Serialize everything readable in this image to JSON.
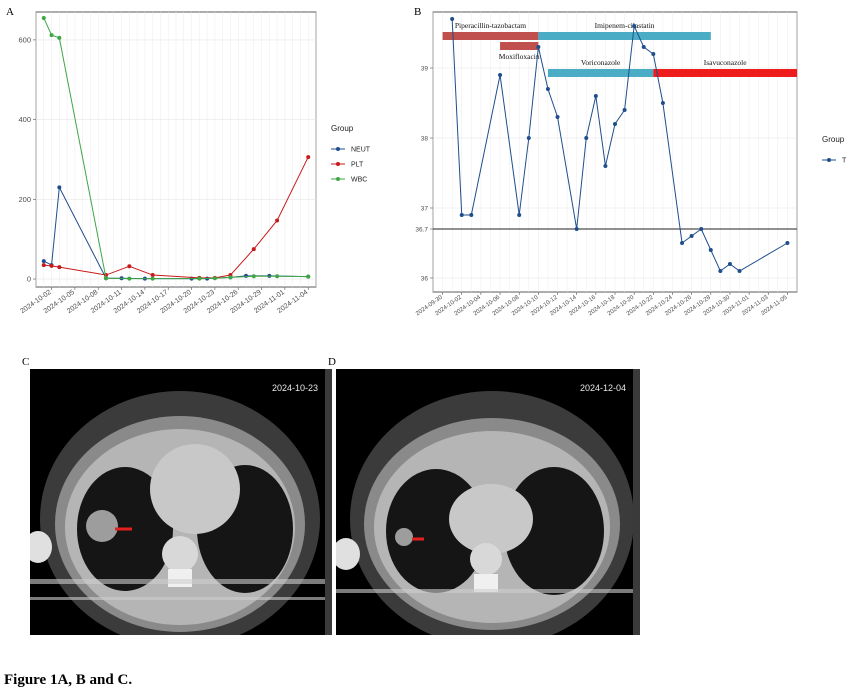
{
  "figure": {
    "caption": "Figure 1A, B and C.",
    "panels": {
      "a": "A",
      "b": "B",
      "c": "C",
      "d": "D"
    }
  },
  "chart_data": [
    {
      "panel": "A",
      "type": "line",
      "legend_title": "Group",
      "legend_position": "right",
      "grid": true,
      "x_type": "date",
      "x_ticks": [
        "2024-10-02",
        "2024-10-05",
        "2024-10-08",
        "2024-10-11",
        "2024-10-14",
        "2024-10-17",
        "2024-10-20",
        "2024-10-23",
        "2024-10-26",
        "2024-10-29",
        "2024-11-01",
        "2024-11-04"
      ],
      "xlim": [
        "2024-09-30",
        "2024-11-05"
      ],
      "ylim": [
        -20,
        670
      ],
      "y_ticks": [
        0,
        200,
        400,
        600
      ],
      "series": [
        {
          "name": "NEUT",
          "color": "#1f4e8c",
          "points": [
            [
              "2024-10-01",
              45
            ],
            [
              "2024-10-02",
              35
            ],
            [
              "2024-10-03",
              230
            ],
            [
              "2024-10-09",
              2
            ],
            [
              "2024-10-11",
              2
            ],
            [
              "2024-10-14",
              1
            ],
            [
              "2024-10-20",
              1
            ],
            [
              "2024-10-22",
              1
            ],
            [
              "2024-10-25",
              4
            ],
            [
              "2024-10-27",
              8
            ],
            [
              "2024-10-30",
              8
            ],
            [
              "2024-11-04",
              6
            ]
          ]
        },
        {
          "name": "PLT",
          "color": "#c8191b",
          "points": [
            [
              "2024-10-01",
              35
            ],
            [
              "2024-10-02",
              33
            ],
            [
              "2024-10-03",
              30
            ],
            [
              "2024-10-09",
              10
            ],
            [
              "2024-10-12",
              32
            ],
            [
              "2024-10-15",
              10
            ],
            [
              "2024-10-21",
              3
            ],
            [
              "2024-10-23",
              3
            ],
            [
              "2024-10-25",
              10
            ],
            [
              "2024-10-28",
              75
            ],
            [
              "2024-10-31",
              147
            ],
            [
              "2024-11-04",
              306
            ]
          ]
        },
        {
          "name": "WBC",
          "color": "#3ea645",
          "points": [
            [
              "2024-10-01",
              655
            ],
            [
              "2024-10-02",
              612
            ],
            [
              "2024-10-03",
              605
            ],
            [
              "2024-10-09",
              2
            ],
            [
              "2024-10-12",
              1
            ],
            [
              "2024-10-15",
              1
            ],
            [
              "2024-10-21",
              1
            ],
            [
              "2024-10-23",
              2
            ],
            [
              "2024-10-25",
              4
            ],
            [
              "2024-10-28",
              7
            ],
            [
              "2024-10-31",
              7
            ],
            [
              "2024-11-04",
              6
            ]
          ]
        }
      ]
    },
    {
      "panel": "B",
      "type": "line",
      "legend_title": "Group",
      "legend_position": "right",
      "grid": true,
      "x_type": "date",
      "x_ticks": [
        "2024-09-30",
        "2024-10-02",
        "2024-10-04",
        "2024-10-06",
        "2024-10-08",
        "2024-10-10",
        "2024-10-12",
        "2024-10-14",
        "2024-10-16",
        "2024-10-18",
        "2024-10-20",
        "2024-10-22",
        "2024-10-24",
        "2024-10-26",
        "2024-10-28",
        "2024-10-30",
        "2024-11-01",
        "2024-11-03",
        "2024-11-05"
      ],
      "xlim": [
        "2024-09-29",
        "2024-11-06"
      ],
      "ylim": [
        35.8,
        39.8
      ],
      "y_ticks": [
        36,
        36.7,
        37,
        38,
        39
      ],
      "reference_line": 36.7,
      "series": [
        {
          "name": "T",
          "color": "#1f4e8c",
          "points": [
            [
              "2024-10-01",
              39.7
            ],
            [
              "2024-10-02",
              36.9
            ],
            [
              "2024-10-03",
              36.9
            ],
            [
              "2024-10-06",
              38.9
            ],
            [
              "2024-10-08",
              36.9
            ],
            [
              "2024-10-09",
              38.0
            ],
            [
              "2024-10-10",
              39.3
            ],
            [
              "2024-10-11",
              38.7
            ],
            [
              "2024-10-12",
              38.3
            ],
            [
              "2024-10-14",
              36.7
            ],
            [
              "2024-10-15",
              38.0
            ],
            [
              "2024-10-16",
              38.6
            ],
            [
              "2024-10-17",
              37.6
            ],
            [
              "2024-10-18",
              38.2
            ],
            [
              "2024-10-19",
              38.4
            ],
            [
              "2024-10-20",
              39.6
            ],
            [
              "2024-10-21",
              39.3
            ],
            [
              "2024-10-22",
              39.2
            ],
            [
              "2024-10-23",
              38.5
            ],
            [
              "2024-10-25",
              36.5
            ],
            [
              "2024-10-26",
              36.6
            ],
            [
              "2024-10-27",
              36.7
            ],
            [
              "2024-10-28",
              36.4
            ],
            [
              "2024-10-29",
              36.1
            ],
            [
              "2024-10-30",
              36.2
            ],
            [
              "2024-10-31",
              36.1
            ],
            [
              "2024-11-05",
              36.5
            ]
          ]
        }
      ],
      "treatments": [
        {
          "name": "Piperacillin-tazobactam",
          "start": "2024-09-30",
          "end": "2024-10-10",
          "row": 1,
          "color": "#c0504d"
        },
        {
          "name": "Imipenem-cilastatin",
          "start": "2024-10-10",
          "end": "2024-10-28",
          "row": 1,
          "color": "#4bacc6"
        },
        {
          "name": "Moxifloxacin",
          "start": "2024-10-06",
          "end": "2024-10-10",
          "row": 2,
          "color": "#c0504d"
        },
        {
          "name": "Voriconazole",
          "start": "2024-10-11",
          "end": "2024-10-22",
          "row": 3,
          "color": "#4bacc6"
        },
        {
          "name": "Isavuconazole",
          "start": "2024-10-22",
          "end": "2024-11-06",
          "row": 3,
          "color": "#ee1c1c"
        }
      ]
    }
  ],
  "ct_images": [
    {
      "panel": "C",
      "date": "2024-10-23"
    },
    {
      "panel": "D",
      "date": "2024-12-04"
    }
  ]
}
